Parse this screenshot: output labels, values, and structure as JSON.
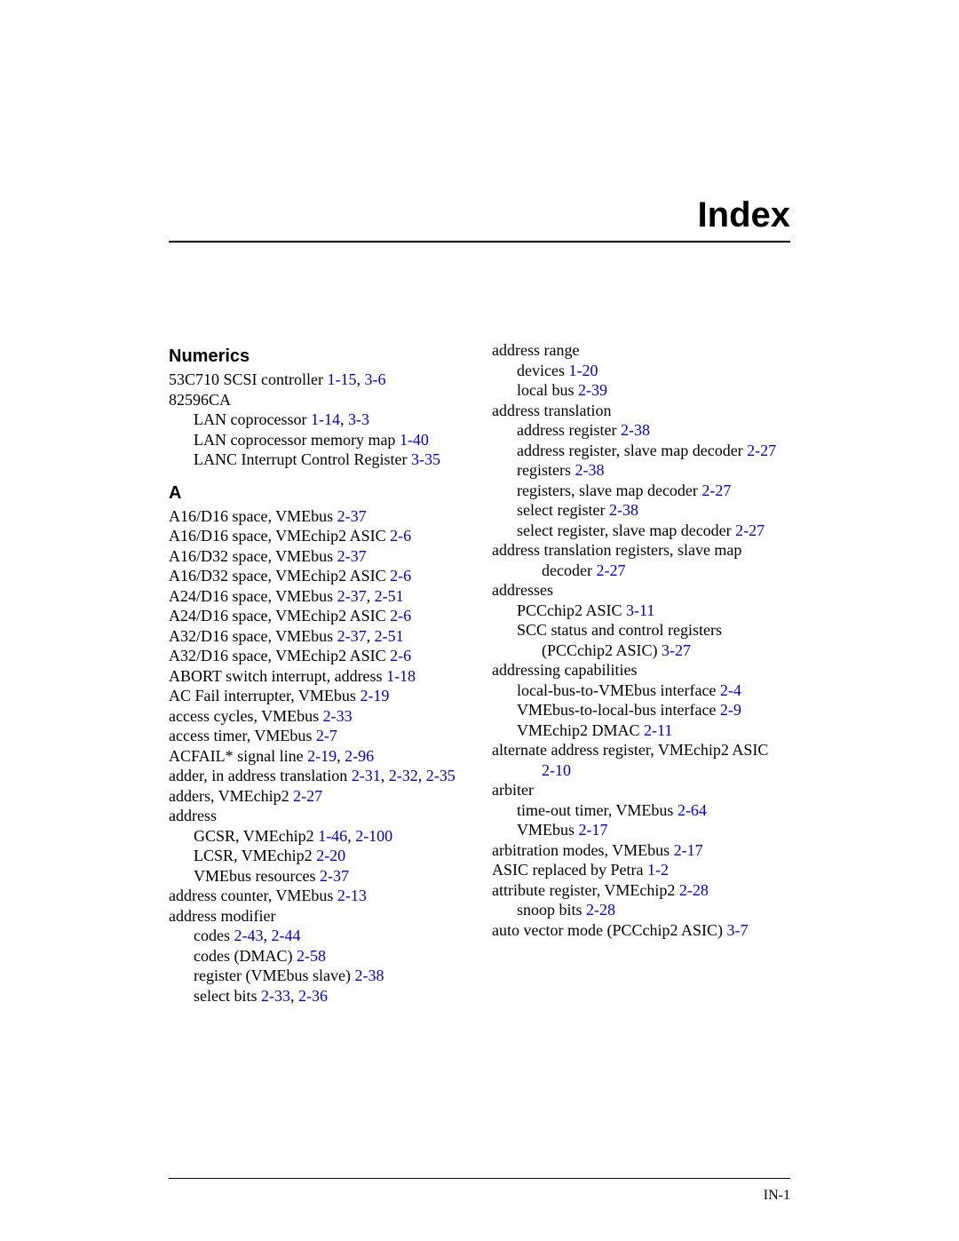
{
  "title": "Index",
  "footer": "IN-1",
  "link_color": "#0000d0",
  "left": {
    "numerics": {
      "head": "Numerics",
      "items": [
        {
          "indent": 0,
          "parts": [
            {
              "t": "53C710 SCSI controller "
            },
            {
              "t": "1-15",
              "l": true
            },
            {
              "t": ", "
            },
            {
              "t": "3-6",
              "l": true
            }
          ]
        },
        {
          "indent": 0,
          "parts": [
            {
              "t": "82596CA"
            }
          ]
        },
        {
          "indent": 1,
          "parts": [
            {
              "t": "LAN coprocessor "
            },
            {
              "t": "1-14",
              "l": true
            },
            {
              "t": ", "
            },
            {
              "t": "3-3",
              "l": true
            }
          ]
        },
        {
          "indent": 1,
          "parts": [
            {
              "t": "LAN coprocessor memory map "
            },
            {
              "t": "1-40",
              "l": true
            }
          ]
        },
        {
          "indent": 1,
          "parts": [
            {
              "t": "LANC Interrupt Control Register "
            },
            {
              "t": "3-35",
              "l": true
            }
          ]
        }
      ]
    },
    "A": {
      "head": "A",
      "items": [
        {
          "indent": 0,
          "parts": [
            {
              "t": "A16/D16 space, VMEbus "
            },
            {
              "t": "2-37",
              "l": true
            }
          ]
        },
        {
          "indent": 0,
          "parts": [
            {
              "t": "A16/D16 space, VMEchip2 ASIC "
            },
            {
              "t": "2-6",
              "l": true
            }
          ]
        },
        {
          "indent": 0,
          "parts": [
            {
              "t": "A16/D32 space, VMEbus "
            },
            {
              "t": "2-37",
              "l": true
            }
          ]
        },
        {
          "indent": 0,
          "parts": [
            {
              "t": "A16/D32 space, VMEchip2 ASIC "
            },
            {
              "t": "2-6",
              "l": true
            }
          ]
        },
        {
          "indent": 0,
          "parts": [
            {
              "t": "A24/D16 space, VMEbus "
            },
            {
              "t": "2-37",
              "l": true
            },
            {
              "t": ", "
            },
            {
              "t": "2-51",
              "l": true
            }
          ]
        },
        {
          "indent": 0,
          "parts": [
            {
              "t": "A24/D16 space, VMEchip2 ASIC "
            },
            {
              "t": "2-6",
              "l": true
            }
          ]
        },
        {
          "indent": 0,
          "parts": [
            {
              "t": "A32/D16 space, VMEbus "
            },
            {
              "t": "2-37",
              "l": true
            },
            {
              "t": ", "
            },
            {
              "t": "2-51",
              "l": true
            }
          ]
        },
        {
          "indent": 0,
          "parts": [
            {
              "t": "A32/D16 space, VMEchip2 ASIC "
            },
            {
              "t": "2-6",
              "l": true
            }
          ]
        },
        {
          "indent": 0,
          "parts": [
            {
              "t": "ABORT switch interrupt, address "
            },
            {
              "t": "1-18",
              "l": true
            }
          ]
        },
        {
          "indent": 0,
          "parts": [
            {
              "t": "AC Fail interrupter, VMEbus "
            },
            {
              "t": "2-19",
              "l": true
            }
          ]
        },
        {
          "indent": 0,
          "parts": [
            {
              "t": "access cycles, VMEbus "
            },
            {
              "t": "2-33",
              "l": true
            }
          ]
        },
        {
          "indent": 0,
          "parts": [
            {
              "t": "access timer, VMEbus "
            },
            {
              "t": "2-7",
              "l": true
            }
          ]
        },
        {
          "indent": 0,
          "parts": [
            {
              "t": "ACFAIL* signal line "
            },
            {
              "t": "2-19",
              "l": true
            },
            {
              "t": ", "
            },
            {
              "t": "2-96",
              "l": true
            }
          ]
        },
        {
          "indent": 0,
          "parts": [
            {
              "t": "adder, in address translation "
            },
            {
              "t": "2-31",
              "l": true
            },
            {
              "t": ", "
            },
            {
              "t": "2-32",
              "l": true
            },
            {
              "t": ", "
            },
            {
              "t": "2-35",
              "l": true
            }
          ]
        },
        {
          "indent": 0,
          "parts": [
            {
              "t": "adders, VMEchip2 "
            },
            {
              "t": "2-27",
              "l": true
            }
          ]
        },
        {
          "indent": 0,
          "parts": [
            {
              "t": "address"
            }
          ]
        },
        {
          "indent": 1,
          "parts": [
            {
              "t": "GCSR, VMEchip2 "
            },
            {
              "t": "1-46",
              "l": true
            },
            {
              "t": ", "
            },
            {
              "t": "2-100",
              "l": true
            }
          ]
        },
        {
          "indent": 1,
          "parts": [
            {
              "t": "LCSR, VMEchip2 "
            },
            {
              "t": "2-20",
              "l": true
            }
          ]
        },
        {
          "indent": 1,
          "parts": [
            {
              "t": "VMEbus resources "
            },
            {
              "t": "2-37",
              "l": true
            }
          ]
        },
        {
          "indent": 0,
          "parts": [
            {
              "t": "address counter, VMEbus "
            },
            {
              "t": "2-13",
              "l": true
            }
          ]
        },
        {
          "indent": 0,
          "parts": [
            {
              "t": "address modifier"
            }
          ]
        },
        {
          "indent": 1,
          "parts": [
            {
              "t": "codes "
            },
            {
              "t": "2-43",
              "l": true
            },
            {
              "t": ", "
            },
            {
              "t": "2-44",
              "l": true
            }
          ]
        },
        {
          "indent": 1,
          "parts": [
            {
              "t": "codes (DMAC) "
            },
            {
              "t": "2-58",
              "l": true
            }
          ]
        },
        {
          "indent": 1,
          "parts": [
            {
              "t": "register (VMEbus slave) "
            },
            {
              "t": "2-38",
              "l": true
            }
          ]
        },
        {
          "indent": 1,
          "parts": [
            {
              "t": "select bits "
            },
            {
              "t": "2-33",
              "l": true
            },
            {
              "t": ", "
            },
            {
              "t": "2-36",
              "l": true
            }
          ]
        }
      ]
    }
  },
  "right": {
    "items": [
      {
        "indent": 0,
        "parts": [
          {
            "t": "address range"
          }
        ]
      },
      {
        "indent": 1,
        "parts": [
          {
            "t": "devices "
          },
          {
            "t": "1-20",
            "l": true
          }
        ]
      },
      {
        "indent": 1,
        "parts": [
          {
            "t": "local bus "
          },
          {
            "t": "2-39",
            "l": true
          }
        ]
      },
      {
        "indent": 0,
        "parts": [
          {
            "t": "address translation"
          }
        ]
      },
      {
        "indent": 1,
        "parts": [
          {
            "t": "address register "
          },
          {
            "t": "2-38",
            "l": true
          }
        ]
      },
      {
        "indent": 1,
        "parts": [
          {
            "t": "address register, slave map decoder "
          },
          {
            "t": "2-27",
            "l": true
          }
        ]
      },
      {
        "indent": 1,
        "parts": [
          {
            "t": "registers "
          },
          {
            "t": "2-38",
            "l": true
          }
        ]
      },
      {
        "indent": 1,
        "parts": [
          {
            "t": "registers, slave map decoder "
          },
          {
            "t": "2-27",
            "l": true
          }
        ]
      },
      {
        "indent": 1,
        "parts": [
          {
            "t": "select register "
          },
          {
            "t": "2-38",
            "l": true
          }
        ]
      },
      {
        "indent": 1,
        "parts": [
          {
            "t": "select register, slave map decoder "
          },
          {
            "t": "2-27",
            "l": true
          }
        ]
      },
      {
        "indent": 0,
        "parts": [
          {
            "t": "address translation registers, slave map"
          }
        ]
      },
      {
        "indent": 2,
        "parts": [
          {
            "t": "decoder "
          },
          {
            "t": "2-27",
            "l": true
          }
        ]
      },
      {
        "indent": 0,
        "parts": [
          {
            "t": "addresses"
          }
        ]
      },
      {
        "indent": 1,
        "parts": [
          {
            "t": "PCCchip2 ASIC "
          },
          {
            "t": "3-11",
            "l": true
          }
        ]
      },
      {
        "indent": 1,
        "parts": [
          {
            "t": "SCC status and control registers"
          }
        ]
      },
      {
        "indent": 2,
        "parts": [
          {
            "t": "(PCCchip2 ASIC) "
          },
          {
            "t": "3-27",
            "l": true
          }
        ]
      },
      {
        "indent": 0,
        "parts": [
          {
            "t": "addressing capabilities"
          }
        ]
      },
      {
        "indent": 1,
        "parts": [
          {
            "t": "local-bus-to-VMEbus interface "
          },
          {
            "t": "2-4",
            "l": true
          }
        ]
      },
      {
        "indent": 1,
        "parts": [
          {
            "t": "VMEbus-to-local-bus interface "
          },
          {
            "t": "2-9",
            "l": true
          }
        ]
      },
      {
        "indent": 1,
        "parts": [
          {
            "t": "VMEchip2 DMAC "
          },
          {
            "t": "2-11",
            "l": true
          }
        ]
      },
      {
        "indent": 0,
        "parts": [
          {
            "t": "alternate address register, VMEchip2 ASIC"
          }
        ]
      },
      {
        "indent": 2,
        "parts": [
          {
            "t": "2-10",
            "l": true
          }
        ]
      },
      {
        "indent": 0,
        "parts": [
          {
            "t": "arbiter"
          }
        ]
      },
      {
        "indent": 1,
        "parts": [
          {
            "t": "time-out timer, VMEbus "
          },
          {
            "t": "2-64",
            "l": true
          }
        ]
      },
      {
        "indent": 1,
        "parts": [
          {
            "t": "VMEbus "
          },
          {
            "t": "2-17",
            "l": true
          }
        ]
      },
      {
        "indent": 0,
        "parts": [
          {
            "t": "arbitration modes, VMEbus "
          },
          {
            "t": "2-17",
            "l": true
          }
        ]
      },
      {
        "indent": 0,
        "parts": [
          {
            "t": "ASIC replaced by Petra "
          },
          {
            "t": "1-2",
            "l": true
          }
        ]
      },
      {
        "indent": 0,
        "parts": [
          {
            "t": "attribute register, VMEchip2 "
          },
          {
            "t": "2-28",
            "l": true
          }
        ]
      },
      {
        "indent": 1,
        "parts": [
          {
            "t": "snoop bits "
          },
          {
            "t": "2-28",
            "l": true
          }
        ]
      },
      {
        "indent": 0,
        "parts": [
          {
            "t": "auto vector mode (PCCchip2 ASIC) "
          },
          {
            "t": "3-7",
            "l": true
          }
        ]
      }
    ]
  }
}
